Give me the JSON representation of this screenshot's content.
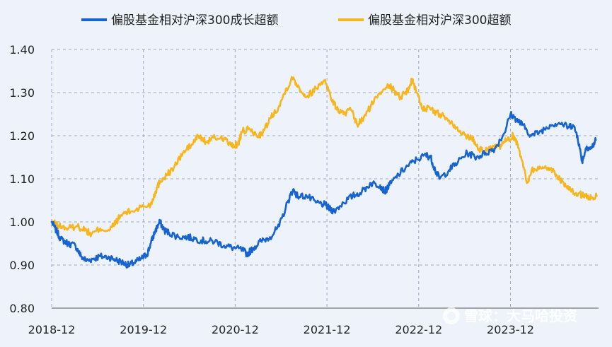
{
  "chart_data": {
    "type": "line",
    "title": "",
    "xlabel": "",
    "ylabel": "",
    "x_ticks": [
      "2018-12",
      "2019-12",
      "2020-12",
      "2021-12",
      "2022-12",
      "2023-12"
    ],
    "y_ticks": [
      "0.80",
      "0.90",
      "1.00",
      "1.10",
      "1.20",
      "1.30",
      "1.40"
    ],
    "ylim": [
      0.8,
      1.4
    ],
    "xlim": [
      2018.92,
      2024.88
    ],
    "grid": true,
    "legend_position": "top-center",
    "series": [
      {
        "name": "偏股基金相对沪深300成长超额",
        "color": "#1763cf",
        "points": [
          [
            2018.92,
            1.0
          ],
          [
            2018.97,
            0.98
          ],
          [
            2019.02,
            0.96
          ],
          [
            2019.1,
            0.95
          ],
          [
            2019.18,
            0.945
          ],
          [
            2019.24,
            0.92
          ],
          [
            2019.3,
            0.91
          ],
          [
            2019.38,
            0.915
          ],
          [
            2019.45,
            0.92
          ],
          [
            2019.55,
            0.918
          ],
          [
            2019.62,
            0.912
          ],
          [
            2019.7,
            0.905
          ],
          [
            2019.76,
            0.9
          ],
          [
            2019.82,
            0.905
          ],
          [
            2019.9,
            0.915
          ],
          [
            2019.96,
            0.925
          ],
          [
            2020.0,
            0.95
          ],
          [
            2020.05,
            0.98
          ],
          [
            2020.1,
            1.0
          ],
          [
            2020.15,
            0.98
          ],
          [
            2020.2,
            0.975
          ],
          [
            2020.3,
            0.965
          ],
          [
            2020.4,
            0.965
          ],
          [
            2020.5,
            0.96
          ],
          [
            2020.6,
            0.955
          ],
          [
            2020.7,
            0.955
          ],
          [
            2020.8,
            0.945
          ],
          [
            2020.9,
            0.94
          ],
          [
            2021.0,
            0.935
          ],
          [
            2021.05,
            0.925
          ],
          [
            2021.12,
            0.94
          ],
          [
            2021.2,
            0.955
          ],
          [
            2021.3,
            0.965
          ],
          [
            2021.4,
            0.99
          ],
          [
            2021.5,
            1.05
          ],
          [
            2021.55,
            1.075
          ],
          [
            2021.6,
            1.06
          ],
          [
            2021.7,
            1.06
          ],
          [
            2021.8,
            1.045
          ],
          [
            2021.9,
            1.04
          ],
          [
            2021.95,
            1.03
          ],
          [
            2022.0,
            1.025
          ],
          [
            2022.1,
            1.045
          ],
          [
            2022.2,
            1.06
          ],
          [
            2022.3,
            1.07
          ],
          [
            2022.4,
            1.09
          ],
          [
            2022.5,
            1.085
          ],
          [
            2022.55,
            1.07
          ],
          [
            2022.6,
            1.085
          ],
          [
            2022.7,
            1.11
          ],
          [
            2022.8,
            1.13
          ],
          [
            2022.9,
            1.145
          ],
          [
            2023.0,
            1.155
          ],
          [
            2023.05,
            1.15
          ],
          [
            2023.1,
            1.12
          ],
          [
            2023.15,
            1.1
          ],
          [
            2023.25,
            1.12
          ],
          [
            2023.35,
            1.14
          ],
          [
            2023.45,
            1.16
          ],
          [
            2023.55,
            1.15
          ],
          [
            2023.65,
            1.16
          ],
          [
            2023.75,
            1.17
          ],
          [
            2023.85,
            1.205
          ],
          [
            2023.92,
            1.25
          ],
          [
            2024.0,
            1.235
          ],
          [
            2024.05,
            1.225
          ],
          [
            2024.15,
            1.2
          ],
          [
            2024.25,
            1.21
          ],
          [
            2024.35,
            1.225
          ],
          [
            2024.45,
            1.23
          ],
          [
            2024.55,
            1.22
          ],
          [
            2024.6,
            1.225
          ],
          [
            2024.65,
            1.2
          ],
          [
            2024.7,
            1.14
          ],
          [
            2024.75,
            1.175
          ],
          [
            2024.8,
            1.17
          ],
          [
            2024.85,
            1.19
          ]
        ]
      },
      {
        "name": "偏股基金相对沪深300超额",
        "color": "#f7b61d",
        "points": [
          [
            2018.92,
            1.0
          ],
          [
            2019.0,
            0.99
          ],
          [
            2019.1,
            0.985
          ],
          [
            2019.2,
            0.99
          ],
          [
            2019.3,
            0.98
          ],
          [
            2019.35,
            0.97
          ],
          [
            2019.45,
            0.985
          ],
          [
            2019.55,
            0.98
          ],
          [
            2019.62,
            1.0
          ],
          [
            2019.7,
            1.02
          ],
          [
            2019.8,
            1.025
          ],
          [
            2019.9,
            1.035
          ],
          [
            2020.0,
            1.04
          ],
          [
            2020.05,
            1.07
          ],
          [
            2020.1,
            1.095
          ],
          [
            2020.18,
            1.11
          ],
          [
            2020.25,
            1.125
          ],
          [
            2020.35,
            1.16
          ],
          [
            2020.45,
            1.18
          ],
          [
            2020.52,
            1.2
          ],
          [
            2020.6,
            1.185
          ],
          [
            2020.7,
            1.195
          ],
          [
            2020.8,
            1.195
          ],
          [
            2020.88,
            1.175
          ],
          [
            2020.95,
            1.18
          ],
          [
            2021.0,
            1.21
          ],
          [
            2021.08,
            1.215
          ],
          [
            2021.15,
            1.2
          ],
          [
            2021.22,
            1.205
          ],
          [
            2021.3,
            1.24
          ],
          [
            2021.4,
            1.27
          ],
          [
            2021.48,
            1.31
          ],
          [
            2021.55,
            1.335
          ],
          [
            2021.62,
            1.31
          ],
          [
            2021.7,
            1.29
          ],
          [
            2021.8,
            1.31
          ],
          [
            2021.9,
            1.33
          ],
          [
            2021.96,
            1.29
          ],
          [
            2022.02,
            1.265
          ],
          [
            2022.1,
            1.25
          ],
          [
            2022.18,
            1.26
          ],
          [
            2022.25,
            1.225
          ],
          [
            2022.32,
            1.24
          ],
          [
            2022.4,
            1.27
          ],
          [
            2022.5,
            1.3
          ],
          [
            2022.58,
            1.32
          ],
          [
            2022.65,
            1.305
          ],
          [
            2022.72,
            1.29
          ],
          [
            2022.8,
            1.305
          ],
          [
            2022.85,
            1.33
          ],
          [
            2022.9,
            1.3
          ],
          [
            2022.96,
            1.265
          ],
          [
            2023.05,
            1.26
          ],
          [
            2023.15,
            1.25
          ],
          [
            2023.25,
            1.235
          ],
          [
            2023.35,
            1.21
          ],
          [
            2023.45,
            1.2
          ],
          [
            2023.52,
            1.19
          ],
          [
            2023.58,
            1.17
          ],
          [
            2023.65,
            1.165
          ],
          [
            2023.72,
            1.17
          ],
          [
            2023.8,
            1.175
          ],
          [
            2023.88,
            1.19
          ],
          [
            2023.95,
            1.2
          ],
          [
            2024.0,
            1.18
          ],
          [
            2024.05,
            1.14
          ],
          [
            2024.1,
            1.09
          ],
          [
            2024.15,
            1.12
          ],
          [
            2024.25,
            1.125
          ],
          [
            2024.35,
            1.125
          ],
          [
            2024.42,
            1.11
          ],
          [
            2024.5,
            1.09
          ],
          [
            2024.58,
            1.07
          ],
          [
            2024.66,
            1.065
          ],
          [
            2024.74,
            1.06
          ],
          [
            2024.8,
            1.055
          ],
          [
            2024.86,
            1.06
          ]
        ]
      }
    ]
  },
  "watermark": {
    "text": "雪球：大马哈投资"
  }
}
